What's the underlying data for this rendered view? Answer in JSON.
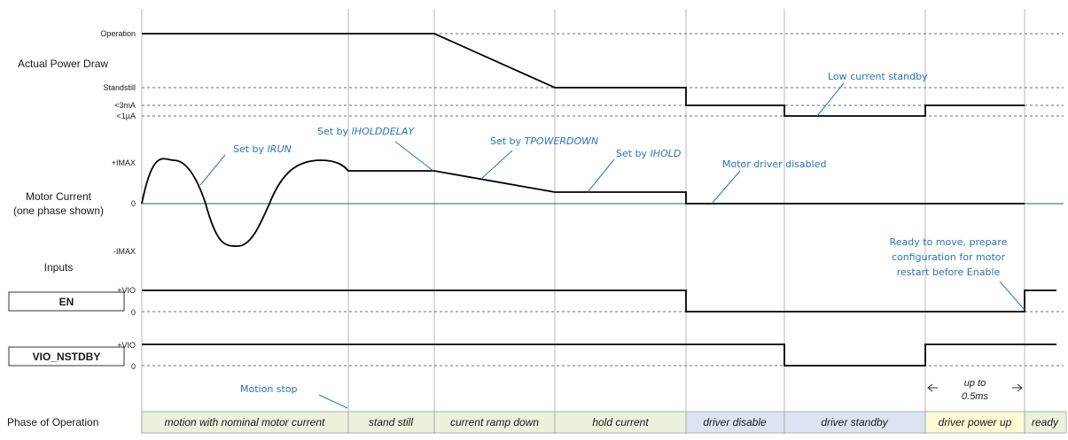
{
  "labels": {
    "power_title": "Actual Power Draw",
    "motor_current_line1": "Motor Current",
    "motor_current_line2": "(one phase shown)",
    "inputs": "Inputs",
    "phase_of_operation": "Phase of Operation"
  },
  "power_levels": {
    "operation": "Operation",
    "standstill": "Standstill",
    "lt3ma": "<3mA",
    "lt1ua": "<1µA"
  },
  "current_levels": {
    "imax_pos": "+IMAX",
    "zero": "0",
    "imax_neg": "-IMAX"
  },
  "signals": {
    "en": {
      "name": "EN",
      "high": "+VIO",
      "low": "0"
    },
    "vio": {
      "name": "VIO_NSTDBY",
      "high": "+VIO",
      "low": "0"
    }
  },
  "annotations": {
    "set_by_irun_prefix": "Set by ",
    "set_by_irun_param": "IRUN",
    "set_by_iholddelay_prefix": "Set by ",
    "set_by_iholddelay_param": "IHOLDDELAY",
    "set_by_tpowerdown_prefix": "Set by ",
    "set_by_tpowerdown_param": "TPOWERDOWN",
    "set_by_ihold_prefix": "Set by ",
    "set_by_ihold_param": "IHOLD",
    "motor_driver_disabled": "Motor driver disabled",
    "low_current_standby": "Low current standby",
    "ready_line1": "Ready to move, prepare",
    "ready_line2": "configuration for motor",
    "ready_line3": "restart before Enable",
    "motion_stop": "Motion stop",
    "up_to_line1": "up to",
    "up_to_line2": "0.5ms"
  },
  "phases": [
    {
      "label": "motion with nominal motor current",
      "color": "#eaf1dd"
    },
    {
      "label": "stand still",
      "color": "#eaf1dd"
    },
    {
      "label": "current ramp down",
      "color": "#eaf1dd"
    },
    {
      "label": "hold current",
      "color": "#eaf1dd"
    },
    {
      "label": "driver disable",
      "color": "#dbe5f1"
    },
    {
      "label": "driver standby",
      "color": "#dbe5f1"
    },
    {
      "label": "driver power up",
      "color": "#fdfbd6"
    },
    {
      "label": "ready",
      "color": "#eaf1dd"
    }
  ],
  "colors": {
    "annotation": "#2a74b4",
    "signal": "#000000",
    "dashed_reference": "#5c6f85"
  }
}
